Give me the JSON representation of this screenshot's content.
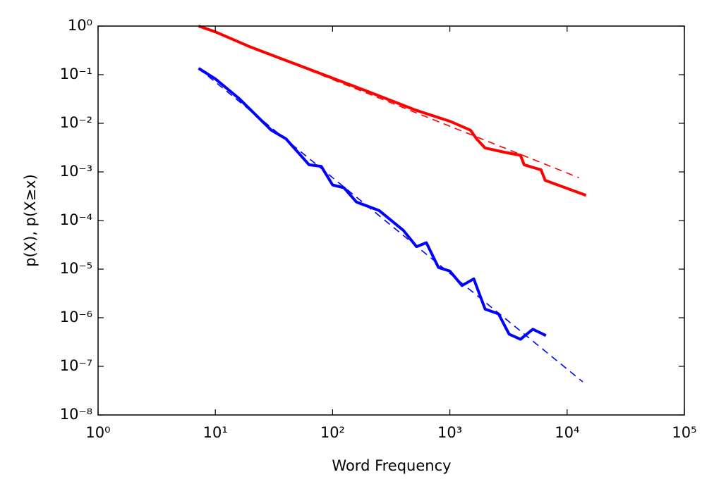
{
  "chart_data": {
    "type": "line",
    "xlabel": "Word Frequency",
    "ylabel": "p(X),  p(X≥x)",
    "xscale": "log",
    "yscale": "log",
    "xlim": [
      1,
      100000
    ],
    "ylim": [
      1e-08,
      1
    ],
    "xticks": [
      {
        "value": 1,
        "label": "10⁰"
      },
      {
        "value": 10,
        "label": "10¹"
      },
      {
        "value": 100,
        "label": "10²"
      },
      {
        "value": 1000,
        "label": "10³"
      },
      {
        "value": 10000,
        "label": "10⁴"
      },
      {
        "value": 100000,
        "label": "10⁵"
      }
    ],
    "yticks": [
      {
        "value": 1e-08,
        "label": "10⁻⁸"
      },
      {
        "value": 1e-07,
        "label": "10⁻⁷"
      },
      {
        "value": 1e-06,
        "label": "10⁻⁶"
      },
      {
        "value": 1e-05,
        "label": "10⁻⁵"
      },
      {
        "value": 0.0001,
        "label": "10⁻⁴"
      },
      {
        "value": 0.001,
        "label": "10⁻³"
      },
      {
        "value": 0.01,
        "label": "10⁻²"
      },
      {
        "value": 0.1,
        "label": "10⁻¹"
      },
      {
        "value": 1,
        "label": "10⁰"
      }
    ],
    "series": [
      {
        "color": "#ff0000",
        "style": "solid",
        "x": [
          7.2,
          10,
          20,
          50,
          100,
          200,
          500,
          1000,
          1500,
          1700,
          2000,
          3000,
          4000,
          4300,
          6000,
          6500,
          14500
        ],
        "values": [
          1.0,
          0.76,
          0.37,
          0.16,
          0.085,
          0.045,
          0.019,
          0.011,
          0.0072,
          0.0047,
          0.0031,
          0.0025,
          0.0022,
          0.0014,
          0.0011,
          0.00067,
          0.00033
        ]
      },
      {
        "color": "#ff0000",
        "style": "dashed",
        "x": [
          7.2,
          12600
        ],
        "values": [
          1.0,
          0.00076
        ]
      },
      {
        "color": "#0000ff",
        "style": "solid",
        "x": [
          7.2,
          10,
          16,
          30,
          40,
          63,
          80,
          100,
          125,
          160,
          250,
          400,
          520,
          630,
          800,
          1000,
          1270,
          1600,
          2000,
          2600,
          3200,
          4000,
          5100,
          6600
        ],
        "values": [
          0.135,
          0.082,
          0.032,
          0.0072,
          0.0048,
          0.0014,
          0.0013,
          0.00054,
          0.00047,
          0.00024,
          0.00016,
          6.3e-05,
          2.9e-05,
          3.5e-05,
          1.08e-05,
          9.1e-06,
          4.6e-06,
          6.3e-06,
          1.5e-06,
          1.2e-06,
          4.6e-07,
          3.6e-07,
          5.8e-07,
          4.3e-07
        ]
      },
      {
        "color": "#0000ff",
        "style": "dashed",
        "x": [
          7.2,
          13600
        ],
        "values": [
          0.135,
          4.8e-08
        ]
      }
    ]
  }
}
